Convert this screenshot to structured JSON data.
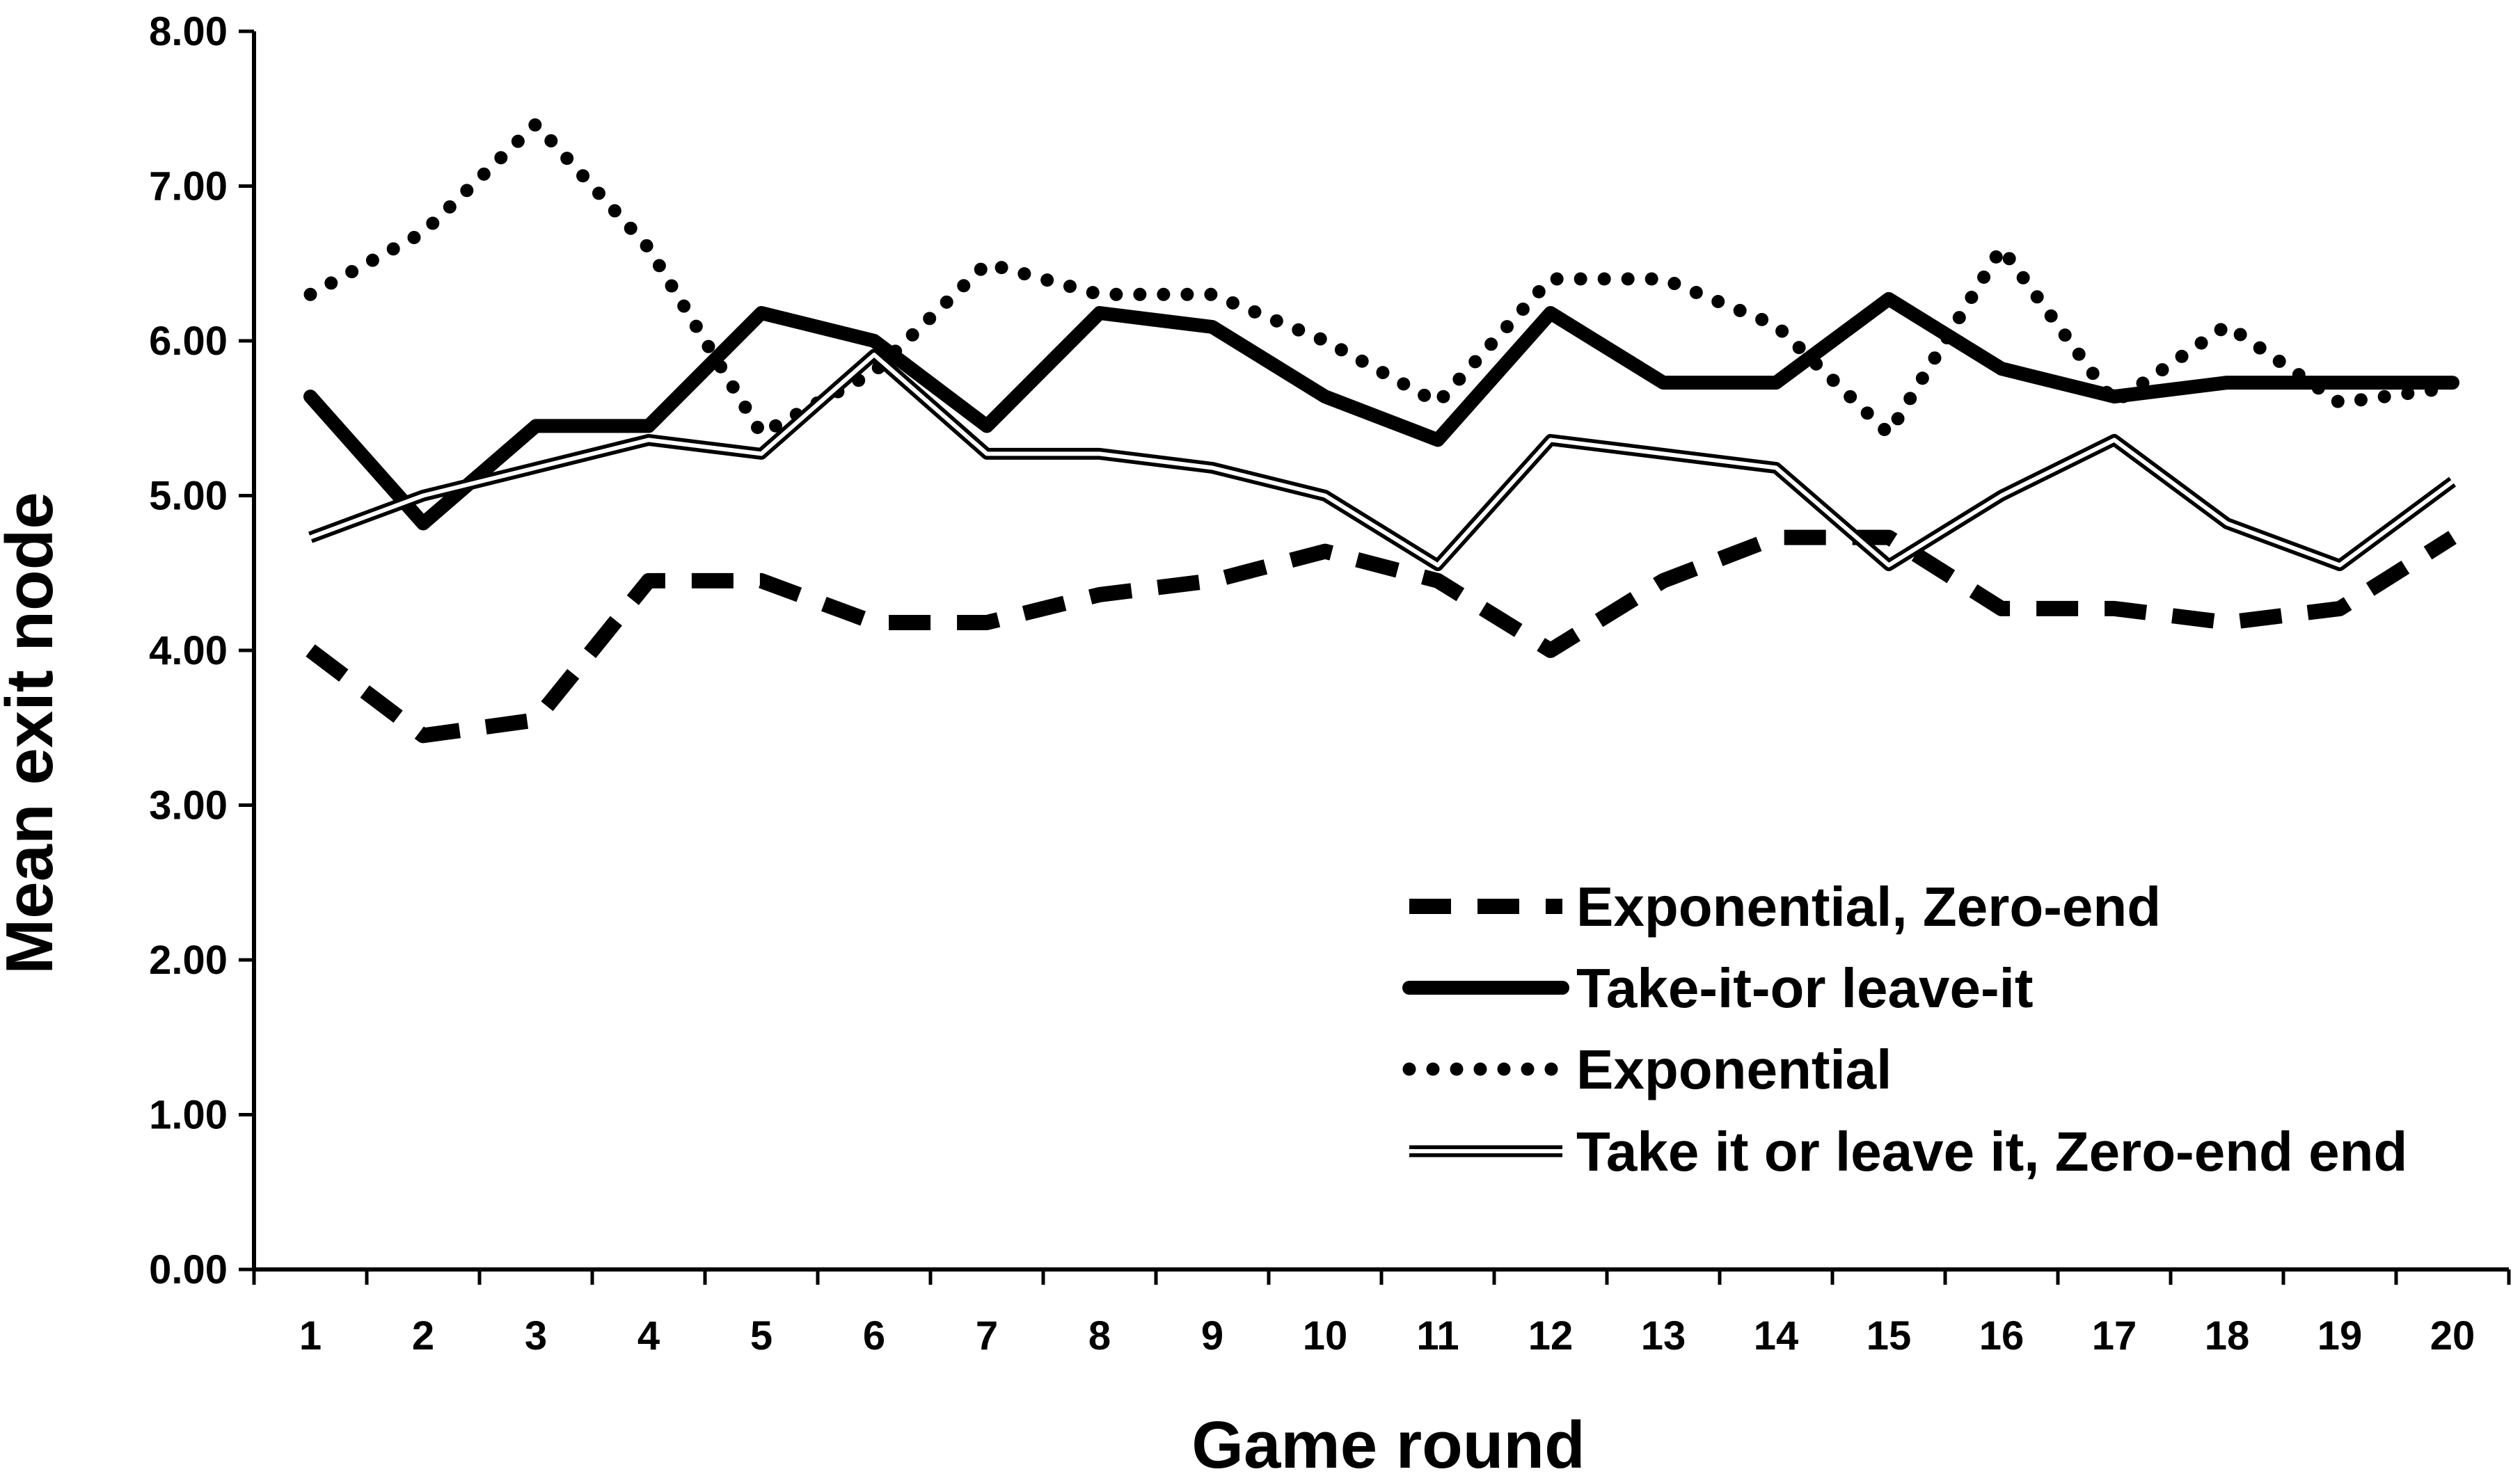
{
  "chart_data": {
    "type": "line",
    "title": "",
    "xlabel": "Game round",
    "ylabel": "Mean exit node",
    "x": [
      1,
      2,
      3,
      4,
      5,
      6,
      7,
      8,
      9,
      10,
      11,
      12,
      13,
      14,
      15,
      16,
      17,
      18,
      19,
      20
    ],
    "ylim": [
      0,
      8
    ],
    "y_ticks": [
      "0.00",
      "1.00",
      "2.00",
      "3.00",
      "4.00",
      "5.00",
      "6.00",
      "7.00",
      "8.00"
    ],
    "x_ticks": [
      "1",
      "2",
      "3",
      "4",
      "5",
      "6",
      "7",
      "8",
      "9",
      "10",
      "11",
      "12",
      "13",
      "14",
      "15",
      "16",
      "17",
      "18",
      "19",
      "20"
    ],
    "grid": false,
    "legend_position": "bottom-right",
    "series": [
      {
        "name": "Exponential, Zero-end",
        "style": "dashed",
        "values": [
          4.0,
          3.45,
          3.55,
          4.45,
          4.45,
          4.18,
          4.18,
          4.36,
          4.45,
          4.64,
          4.45,
          4.0,
          4.45,
          4.73,
          4.73,
          4.27,
          4.27,
          4.18,
          4.27,
          4.73
        ]
      },
      {
        "name": "Take-it-or leave-it",
        "style": "solid-thick",
        "values": [
          5.64,
          4.82,
          5.45,
          5.45,
          6.18,
          6.0,
          5.45,
          6.18,
          6.09,
          5.64,
          5.36,
          6.18,
          5.73,
          5.73,
          6.27,
          5.82,
          5.64,
          5.73,
          5.73,
          5.73
        ]
      },
      {
        "name": "Exponential",
        "style": "dotted",
        "values": [
          6.3,
          6.7,
          7.4,
          6.6,
          5.4,
          5.8,
          6.5,
          6.3,
          6.3,
          6.0,
          5.6,
          6.4,
          6.4,
          6.1,
          5.4,
          6.6,
          5.6,
          6.1,
          5.6,
          5.7
        ]
      },
      {
        "name": "Take it or leave it, Zero-end end",
        "style": "double",
        "values": [
          4.73,
          5.0,
          5.18,
          5.36,
          5.27,
          5.91,
          5.27,
          5.27,
          5.18,
          5.0,
          4.55,
          5.36,
          5.27,
          5.18,
          4.55,
          5.0,
          5.36,
          4.82,
          4.55,
          5.09
        ]
      }
    ]
  }
}
